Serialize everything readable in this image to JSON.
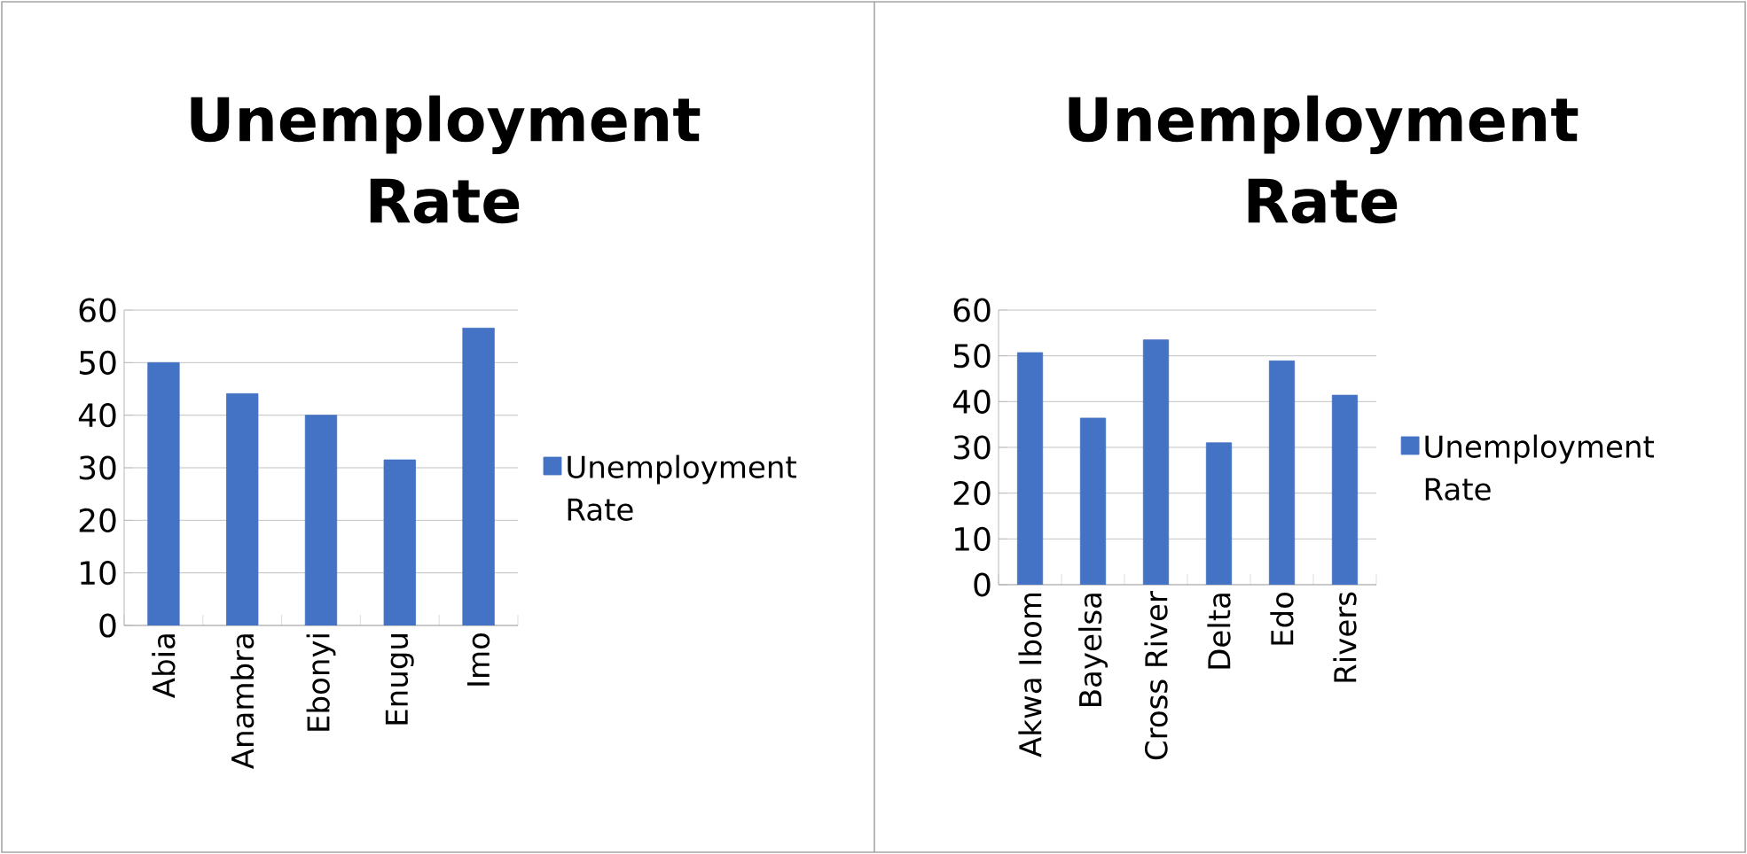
{
  "chart_data": [
    {
      "type": "bar",
      "title": "Unemployment Rate",
      "categories": [
        "Abia",
        "Anambra",
        "Ebonyi",
        "Enugu",
        "Imo"
      ],
      "series": [
        {
          "name": "Unemployment Rate",
          "color": "#4472c4",
          "values": [
            50,
            44.1,
            40,
            31.5,
            56.6
          ]
        }
      ],
      "ylim": [
        0,
        60
      ],
      "yticks": [
        0,
        10,
        20,
        30,
        40,
        50,
        60
      ],
      "grid": "y",
      "legend": "right"
    },
    {
      "type": "bar",
      "title": "Unemployment Rate",
      "categories": [
        "Akwa Ibom",
        "Bayelsa",
        "Cross River",
        "Delta",
        "Edo",
        "Rivers"
      ],
      "series": [
        {
          "name": "Unemployment Rate",
          "color": "#4472c4",
          "values": [
            50.7,
            36.4,
            53.5,
            31,
            48.9,
            41.4
          ]
        }
      ],
      "ylim": [
        0,
        60
      ],
      "yticks": [
        0,
        10,
        20,
        30,
        40,
        50,
        60
      ],
      "grid": "y",
      "legend": "right"
    }
  ]
}
